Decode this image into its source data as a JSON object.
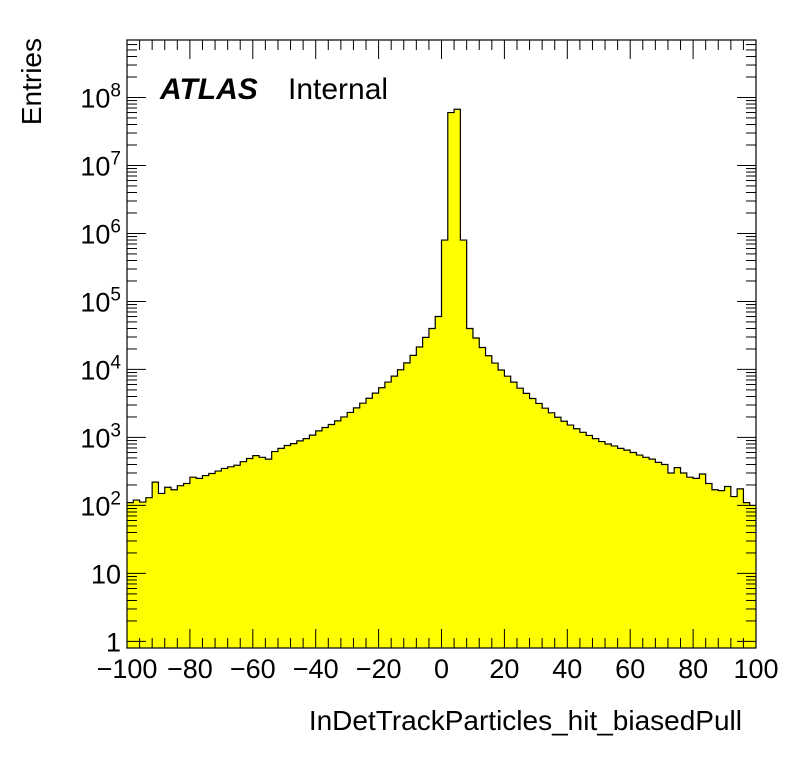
{
  "chart_data": {
    "type": "histogram",
    "xlabel": "InDetTrackParticles_hit_biasedPull",
    "ylabel": "Entries",
    "xlim": [
      -100,
      100
    ],
    "ylim": [
      0.8,
      700000000
    ],
    "yscale": "log",
    "fill_color": "#ffff00",
    "line_color": "#000000",
    "label_bold": "ATLAS",
    "label_plain": "Internal",
    "x_ticks": [
      -100,
      -80,
      -60,
      -40,
      -20,
      0,
      20,
      40,
      60,
      80,
      100
    ],
    "x_tick_labels": [
      "−100",
      "−80",
      "−60",
      "−40",
      "−20",
      "0",
      "20",
      "40",
      "60",
      "80",
      "100"
    ],
    "y_ticks": [
      {
        "value": 1,
        "base": "1",
        "exp": ""
      },
      {
        "value": 10,
        "base": "10",
        "exp": ""
      },
      {
        "value": 100,
        "base": "10",
        "exp": "2"
      },
      {
        "value": 1000,
        "base": "10",
        "exp": "3"
      },
      {
        "value": 10000,
        "base": "10",
        "exp": "4"
      },
      {
        "value": 100000,
        "base": "10",
        "exp": "5"
      },
      {
        "value": 1000000,
        "base": "10",
        "exp": "6"
      },
      {
        "value": 10000000,
        "base": "10",
        "exp": "7"
      },
      {
        "value": 100000000,
        "base": "10",
        "exp": "8"
      }
    ],
    "bin_width": 2,
    "bin_low_edges": [
      -100,
      -98,
      -96,
      -94,
      -92,
      -90,
      -88,
      -86,
      -84,
      -82,
      -80,
      -78,
      -76,
      -74,
      -72,
      -70,
      -68,
      -66,
      -64,
      -62,
      -60,
      -58,
      -56,
      -54,
      -52,
      -50,
      -48,
      -46,
      -44,
      -42,
      -40,
      -38,
      -36,
      -34,
      -32,
      -30,
      -28,
      -26,
      -24,
      -22,
      -20,
      -18,
      -16,
      -14,
      -12,
      -10,
      -8,
      -6,
      -4,
      -2,
      0,
      2,
      4,
      6,
      8,
      10,
      12,
      14,
      16,
      18,
      20,
      22,
      24,
      26,
      28,
      30,
      32,
      34,
      36,
      38,
      40,
      42,
      44,
      46,
      48,
      50,
      52,
      54,
      56,
      58,
      60,
      62,
      64,
      66,
      68,
      70,
      72,
      74,
      76,
      78,
      80,
      82,
      84,
      86,
      88,
      90,
      92,
      94,
      96,
      98
    ],
    "values": [
      110,
      120,
      112,
      130,
      220,
      150,
      185,
      170,
      195,
      210,
      260,
      250,
      275,
      295,
      320,
      350,
      370,
      390,
      440,
      490,
      540,
      510,
      480,
      620,
      690,
      760,
      810,
      890,
      960,
      1080,
      1250,
      1400,
      1550,
      1750,
      2000,
      2330,
      2720,
      3190,
      3770,
      4480,
      5380,
      6520,
      7980,
      9900,
      12500,
      16100,
      21400,
      29600,
      40000,
      60000,
      800000,
      60000000,
      67000000,
      800000,
      40000,
      29000,
      21000,
      15900,
      12400,
      9800,
      7960,
      6500,
      5300,
      4450,
      3740,
      3160,
      2690,
      2300,
      1980,
      1730,
      1520,
      1340,
      1190,
      1070,
      960,
      870,
      800,
      750,
      690,
      650,
      600,
      550,
      510,
      480,
      430,
      400,
      300,
      360,
      300,
      260,
      250,
      290,
      210,
      170,
      165,
      190,
      135,
      175,
      110,
      100
    ]
  }
}
